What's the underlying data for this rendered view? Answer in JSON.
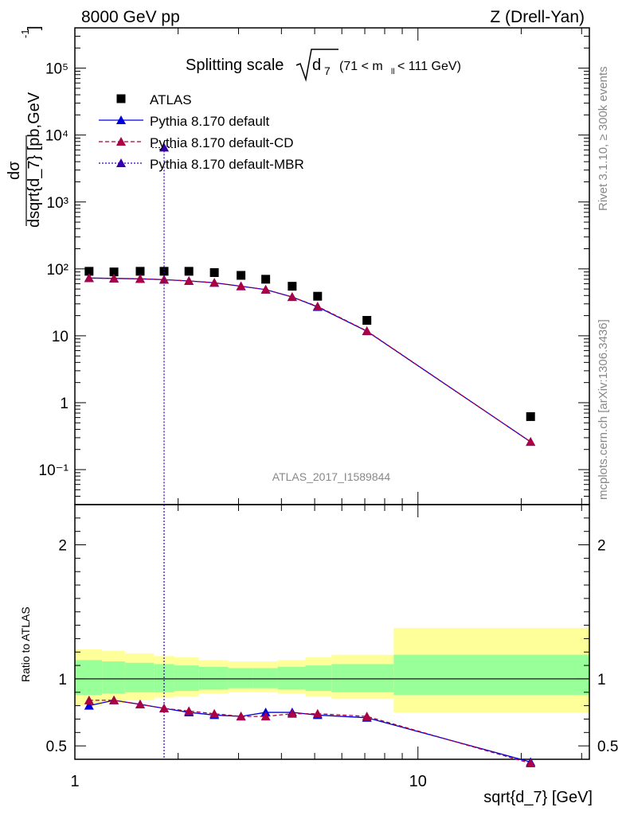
{
  "header": {
    "left": "8000 GeV pp",
    "right": "Z (Drell-Yan)"
  },
  "side_notes": {
    "rivet": "Rivet 3.1.10, ≥ 300k events",
    "mcplots": "mcplots.cern.ch [arXiv:1306.3436]"
  },
  "plot_title": {
    "prefix": "Splitting scale",
    "symbol": "d",
    "subscript": "7",
    "range": "(71 < m",
    "range_sub": "ll",
    "range_end": " < 111 GeV)"
  },
  "analysis_id": "ATLAS_2017_I1589844",
  "axes": {
    "y_top_label": "dσ / dsqrt{d_7} [pb,GeV⁻¹]",
    "y_top_num": "dσ",
    "y_top_den": "dsqrt{d_7} [pb,GeV",
    "y_top_den_sup": "-1",
    "y_top_den_end": "]",
    "y_bottom_label": "Ratio to ATLAS",
    "x_label": "sqrt{d_7} [GeV]"
  },
  "legend": [
    {
      "label": "ATLAS",
      "marker": "square",
      "color": "#000000",
      "line": "none"
    },
    {
      "label": "Pythia 8.170 default",
      "marker": "triangle",
      "color": "#0000dd",
      "line": "solid"
    },
    {
      "label": "Pythia 8.170 default-CD",
      "marker": "triangle",
      "color": "#aa0044",
      "line": "dashed"
    },
    {
      "label": "Pythia 8.170 default-MBR",
      "marker": "triangle",
      "color": "#3300aa",
      "line": "dotted"
    }
  ],
  "chart_data": [
    {
      "type": "line",
      "panel": "main",
      "xscale": "log",
      "yscale": "log",
      "xlim": [
        1,
        31.6
      ],
      "ylim": [
        0.03,
        400000
      ],
      "x_ticks": [
        "1",
        "10"
      ],
      "y_ticks": [
        "10⁻¹",
        "1",
        "10",
        "10²",
        "10³",
        "10⁴",
        "10⁵"
      ],
      "x": [
        1.1,
        1.3,
        1.55,
        1.82,
        2.15,
        2.55,
        3.05,
        3.6,
        4.3,
        5.1,
        7.1,
        21.3
      ],
      "series": [
        {
          "name": "ATLAS",
          "values": [
            92,
            90,
            92,
            92,
            92,
            88,
            80,
            70,
            55,
            39,
            17,
            0.62
          ]
        },
        {
          "name": "Pythia 8.170 default",
          "values": [
            73,
            72,
            71,
            69,
            66,
            62,
            55,
            49,
            38,
            27,
            11.7,
            0.26
          ]
        },
        {
          "name": "Pythia 8.170 default-CD",
          "values": [
            73,
            72,
            71,
            69,
            66,
            62,
            55,
            49,
            38,
            27.5,
            11.8,
            0.26
          ]
        },
        {
          "name": "Pythia 8.170 default-MBR",
          "values": [
            null,
            null,
            null,
            6500,
            null,
            null,
            null,
            null,
            null,
            null,
            null,
            null
          ]
        }
      ]
    },
    {
      "type": "line",
      "panel": "ratio",
      "xscale": "log",
      "xlim": [
        1,
        31.6
      ],
      "ylim": [
        0.4,
        2.3
      ],
      "x_ticks": [
        "1",
        "10"
      ],
      "y_ticks": [
        "0.5",
        "1",
        "2"
      ],
      "x": [
        1.1,
        1.3,
        1.55,
        1.82,
        2.15,
        2.55,
        3.05,
        3.6,
        4.3,
        5.1,
        7.1,
        21.3
      ],
      "bin_edges": [
        1,
        1.2,
        1.4,
        1.7,
        1.95,
        2.3,
        2.8,
        3.3,
        3.9,
        4.7,
        5.6,
        8.5,
        31.6
      ],
      "band_inner": [
        [
          0.88,
          1.14
        ],
        [
          0.89,
          1.13
        ],
        [
          0.9,
          1.12
        ],
        [
          0.9,
          1.11
        ],
        [
          0.91,
          1.1
        ],
        [
          0.92,
          1.09
        ],
        [
          0.93,
          1.08
        ],
        [
          0.93,
          1.08
        ],
        [
          0.92,
          1.09
        ],
        [
          0.91,
          1.1
        ],
        [
          0.9,
          1.11
        ],
        [
          0.88,
          1.18
        ]
      ],
      "band_outer": [
        [
          0.8,
          1.22
        ],
        [
          0.82,
          1.21
        ],
        [
          0.84,
          1.19
        ],
        [
          0.86,
          1.17
        ],
        [
          0.87,
          1.16
        ],
        [
          0.89,
          1.14
        ],
        [
          0.9,
          1.13
        ],
        [
          0.9,
          1.13
        ],
        [
          0.89,
          1.14
        ],
        [
          0.87,
          1.16
        ],
        [
          0.85,
          1.18
        ],
        [
          0.75,
          1.38
        ]
      ],
      "series": [
        {
          "name": "Pythia 8.170 default",
          "values": [
            0.8,
            0.84,
            0.81,
            0.78,
            0.75,
            0.73,
            0.72,
            0.75,
            0.75,
            0.73,
            0.71,
            0.38
          ]
        },
        {
          "name": "Pythia 8.170 default-CD",
          "values": [
            0.84,
            0.84,
            0.81,
            0.78,
            0.76,
            0.74,
            0.72,
            0.72,
            0.74,
            0.74,
            0.72,
            0.37
          ]
        }
      ]
    }
  ]
}
